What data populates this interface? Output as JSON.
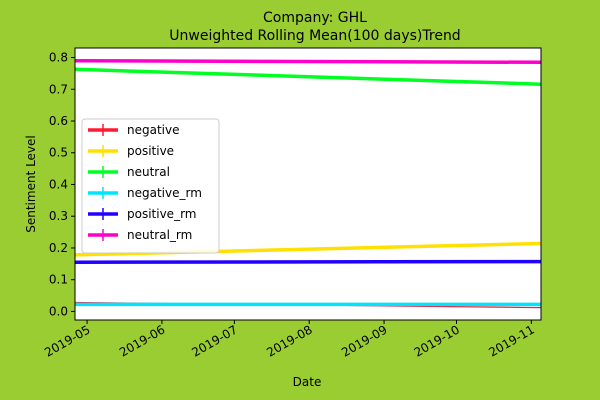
{
  "chart_data": {
    "type": "line",
    "title_line1": "Company: GHL",
    "title_line2": "Unweighted Rolling Mean(100 days)Trend",
    "xlabel": "Date",
    "ylabel": "Sentiment Level",
    "x": [
      "2019-04-26",
      "2019-11-05"
    ],
    "x_range": [
      "2019-04-26",
      "2019-11-05"
    ],
    "ylim": [
      -0.027,
      0.83
    ],
    "xticks": [
      "2019-05-01",
      "2019-06-01",
      "2019-07-01",
      "2019-08-01",
      "2019-09-01",
      "2019-10-01",
      "2019-11-01"
    ],
    "xtick_labels": [
      "2019-05",
      "2019-06",
      "2019-07",
      "2019-08",
      "2019-09",
      "2019-10",
      "2019-11"
    ],
    "yticks": [
      0.0,
      0.1,
      0.2,
      0.3,
      0.4,
      0.5,
      0.6,
      0.7,
      0.8
    ],
    "ytick_labels": [
      "0.0",
      "0.1",
      "0.2",
      "0.3",
      "0.4",
      "0.5",
      "0.6",
      "0.7",
      "0.8"
    ],
    "grid": false,
    "legend_position": "center-left",
    "series": [
      {
        "name": "negative",
        "color": "#ff1a33",
        "width": 1.2,
        "values": [
          0.028,
          0.012
        ]
      },
      {
        "name": "positive",
        "color": "#ffe000",
        "width": 3.5,
        "values": [
          0.178,
          0.214
        ]
      },
      {
        "name": "neutral",
        "color": "#00ff22",
        "width": 3.5,
        "values": [
          0.763,
          0.716
        ]
      },
      {
        "name": "negative_rm",
        "color": "#00e5ff",
        "width": 3.5,
        "values": [
          0.022,
          0.022
        ]
      },
      {
        "name": "positive_rm",
        "color": "#2200ff",
        "width": 3.5,
        "values": [
          0.155,
          0.157
        ]
      },
      {
        "name": "neutral_rm",
        "color": "#ff00cc",
        "width": 3.5,
        "values": [
          0.79,
          0.785
        ]
      }
    ]
  }
}
